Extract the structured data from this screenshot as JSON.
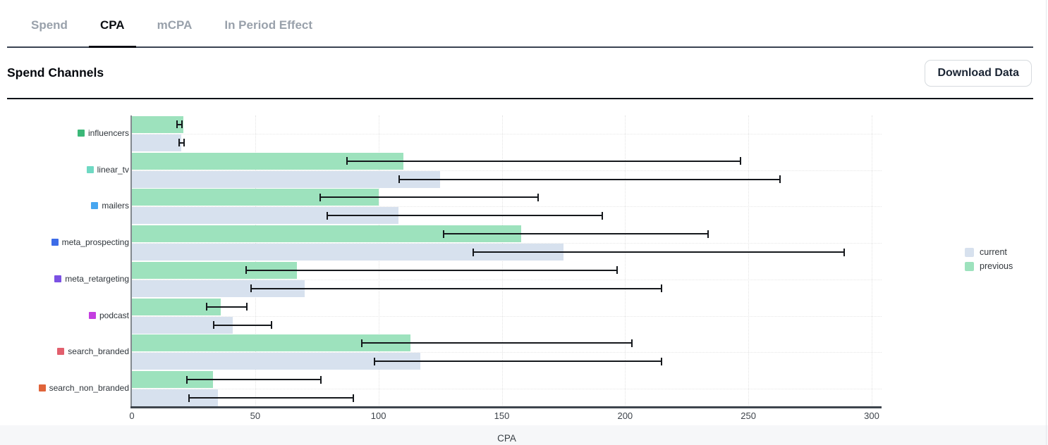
{
  "tabs": {
    "items": [
      {
        "label": "Spend",
        "active": false
      },
      {
        "label": "CPA",
        "active": true
      },
      {
        "label": "mCPA",
        "active": false
      },
      {
        "label": "In Period Effect",
        "active": false
      }
    ]
  },
  "header": {
    "title": "Spend Channels",
    "download_label": "Download Data"
  },
  "chart_data": {
    "type": "bar",
    "orientation": "horizontal",
    "title": "Spend Channels",
    "xlabel": "CPA",
    "xlim": [
      0,
      300
    ],
    "xticks": [
      0,
      50,
      100,
      150,
      200,
      250,
      300
    ],
    "grid": "dotted vertical at each x tick, dotted horizontal at each category center",
    "legend_position": "right",
    "legend": [
      {
        "name": "current",
        "color": "#d7e1ee"
      },
      {
        "name": "previous",
        "color": "#9de2bd"
      }
    ],
    "categories": [
      "influencers",
      "linear_tv",
      "mailers",
      "meta_prospecting",
      "meta_retargeting",
      "podcast",
      "search_branded",
      "search_non_branded"
    ],
    "category_marker_colors": [
      "#3bb878",
      "#6fd9c3",
      "#47a6f0",
      "#3d6ce8",
      "#7b51e3",
      "#c43ee0",
      "#e25f6d",
      "#e0643a"
    ],
    "error_bar_color": "#15181c",
    "series": [
      {
        "name": "previous",
        "position": "top",
        "color": "#9de2bd",
        "values": [
          21,
          110,
          100,
          158,
          67,
          36,
          113,
          33
        ],
        "error_low": [
          18,
          87,
          76,
          126,
          46,
          30,
          93,
          22
        ],
        "error_high": [
          20.5,
          247,
          165,
          234,
          197,
          47,
          203,
          77
        ]
      },
      {
        "name": "current",
        "position": "bottom",
        "color": "#d7e1ee",
        "values": [
          20,
          125,
          108,
          175,
          70,
          41,
          117,
          35
        ],
        "error_low": [
          19,
          108,
          79,
          138,
          48,
          33,
          98,
          23
        ],
        "error_high": [
          21.5,
          263,
          191,
          289,
          215,
          57,
          215,
          90
        ]
      }
    ]
  }
}
